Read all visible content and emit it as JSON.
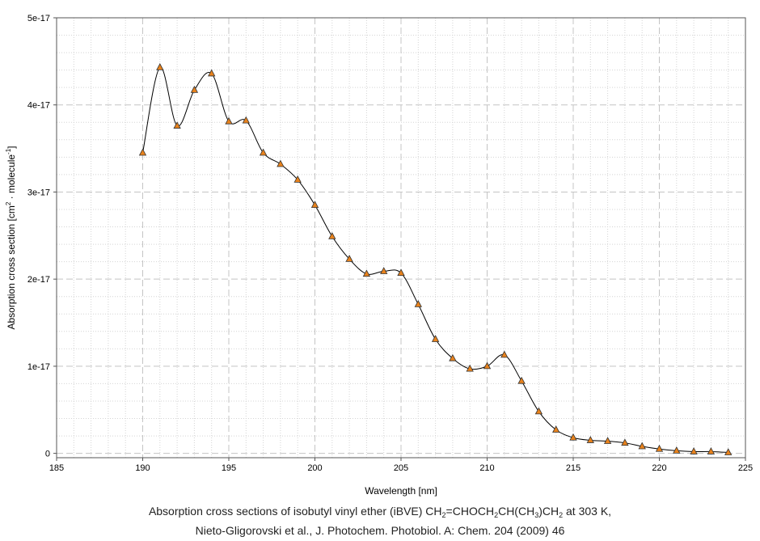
{
  "chart_data": {
    "type": "line",
    "xlabel": "Wavelength [nm]",
    "ylabel": {
      "main": "Absorption cross section [cm",
      "sup1": "2",
      "mid": " · molecule",
      "sup2": "-1",
      "end": "]"
    },
    "xlim": [
      185,
      225
    ],
    "ylim": [
      -5e-19,
      5e-17
    ],
    "xticks": [
      185,
      190,
      195,
      200,
      205,
      210,
      215,
      220,
      225
    ],
    "xtick_labels": [
      "185",
      "190",
      "195",
      "200",
      "205",
      "210",
      "215",
      "220",
      "225"
    ],
    "yticks": [
      0,
      1e-17,
      2e-17,
      3e-17,
      4e-17,
      5e-17
    ],
    "ytick_labels": [
      "0",
      "1e-17",
      "2e-17",
      "3e-17",
      "4e-17",
      "5e-17"
    ],
    "grid": true,
    "series": [
      {
        "marker": "triangle",
        "line_color": "#000000",
        "marker_color": "#e8821c",
        "x": [
          190,
          191,
          192,
          193,
          194,
          195,
          196,
          197,
          198,
          199,
          200,
          201,
          202,
          203,
          204,
          205,
          206,
          207,
          208,
          209,
          210,
          211,
          212,
          213,
          214,
          215,
          216,
          217,
          218,
          219,
          220,
          221,
          222,
          223,
          224
        ],
        "y": [
          3.45e-17,
          4.43e-17,
          3.76e-17,
          4.17e-17,
          4.36e-17,
          3.81e-17,
          3.82e-17,
          3.45e-17,
          3.32e-17,
          3.14e-17,
          2.85e-17,
          2.49e-17,
          2.23e-17,
          2.06e-17,
          2.09e-17,
          2.07e-17,
          1.71e-17,
          1.31e-17,
          1.09e-17,
          9.7e-18,
          1e-17,
          1.13e-17,
          8.3e-18,
          4.8e-18,
          2.7e-18,
          1.8e-18,
          1.5e-18,
          1.4e-18,
          1.2e-18,
          8e-19,
          5e-19,
          3e-19,
          2e-19,
          2e-19,
          1e-19
        ]
      }
    ]
  },
  "caption": {
    "line1_a": "Absorption cross sections of isobutyl vinyl ether (iBVE) CH",
    "line1_s1": "2",
    "line1_b": "=CHOCH",
    "line1_s2": "2",
    "line1_c": "CH(CH",
    "line1_s3": "3",
    "line1_d": ")CH",
    "line1_s4": "2",
    "line1_e": " at 303 K,",
    "line2": "Nieto-Gligorovski et al., J. Photochem. Photobiol. A: Chem. 204 (2009) 46"
  }
}
